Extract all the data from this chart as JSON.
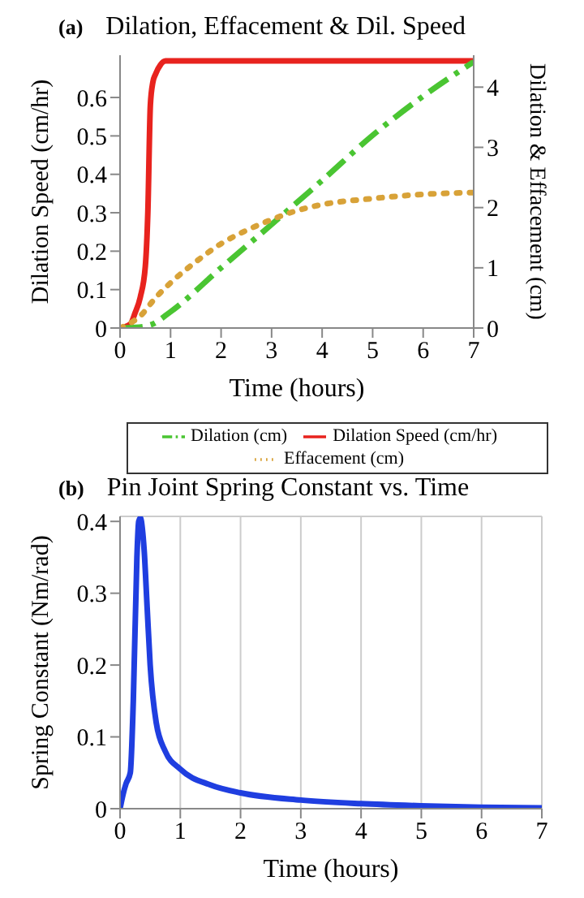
{
  "chart_data": [
    {
      "type": "line",
      "title": "Dilation, Effacement & Dil. Speed",
      "xlabel": "Time (hours)",
      "ylabel": "Dilation Speed (cm/hr)",
      "y2label": "Dilation & Effacement (cm)",
      "annotations": [
        "(a)"
      ],
      "xlim": [
        0,
        7
      ],
      "xticks": [
        0,
        1,
        2,
        3,
        4,
        5,
        6,
        7
      ],
      "ylim": [
        0,
        0.71
      ],
      "yticks": [
        0,
        0.1,
        0.2,
        0.3,
        0.4,
        0.5,
        0.6
      ],
      "y2lim": [
        0,
        4.53
      ],
      "y2ticks": [
        0,
        1,
        2,
        3,
        4
      ],
      "grid": false,
      "legend": "bottom",
      "series": [
        {
          "name": "Dilation Speed (cm/hr)",
          "color": "#e8231e",
          "line_style": "solid",
          "x": [
            0,
            0.2,
            0.3,
            0.4,
            0.5,
            0.55,
            0.6,
            0.65,
            0.7,
            0.8,
            0.9,
            1,
            2,
            3,
            4,
            5,
            6,
            7
          ],
          "values": [
            0,
            0.01,
            0.04,
            0.08,
            0.16,
            0.3,
            0.58,
            0.64,
            0.66,
            0.685,
            0.695,
            0.695,
            0.695,
            0.695,
            0.695,
            0.695,
            0.695,
            0.695
          ]
        },
        {
          "name": "Dilation (cm)",
          "color": "#4ac532",
          "line_style": "dashdot",
          "axis": "y2",
          "x": [
            0,
            0.3,
            0.6,
            1,
            2,
            3,
            4,
            5,
            6,
            7
          ],
          "values": [
            0,
            0.01,
            0.05,
            0.27,
            1.0,
            1.72,
            2.45,
            3.2,
            3.85,
            4.42
          ]
        },
        {
          "name": "Effacement (cm)",
          "color": "#d8a238",
          "line_style": "dotted",
          "axis": "y2",
          "x": [
            0,
            0.2,
            0.4,
            0.7,
            1,
            1.5,
            2,
            2.5,
            3,
            3.5,
            4,
            5,
            6,
            7
          ],
          "values": [
            0,
            0.08,
            0.2,
            0.5,
            0.75,
            1.1,
            1.4,
            1.62,
            1.8,
            1.95,
            2.05,
            2.15,
            2.22,
            2.25
          ]
        }
      ]
    },
    {
      "type": "line",
      "title": "Pin Joint Spring Constant vs. Time",
      "xlabel": "Time (hours)",
      "ylabel": "Spring Constant (Nm/rad)",
      "annotations": [
        "(b)"
      ],
      "xlim": [
        0,
        7
      ],
      "xticks": [
        0,
        1,
        2,
        3,
        4,
        5,
        6,
        7
      ],
      "ylim": [
        0,
        0.407
      ],
      "yticks": [
        0,
        0.1,
        0.2,
        0.3,
        0.4
      ],
      "grid": true,
      "legend": false,
      "series": [
        {
          "color": "#1f3ee0",
          "line_style": "solid",
          "x": [
            0,
            0.05,
            0.1,
            0.17,
            0.22,
            0.28,
            0.31,
            0.34,
            0.37,
            0.4,
            0.45,
            0.5,
            0.6,
            0.75,
            1,
            1.5,
            2,
            3,
            4,
            5,
            6,
            7
          ],
          "values": [
            0,
            0.02,
            0.035,
            0.05,
            0.15,
            0.35,
            0.4,
            0.405,
            0.39,
            0.36,
            0.28,
            0.2,
            0.12,
            0.08,
            0.055,
            0.033,
            0.022,
            0.012,
            0.007,
            0.004,
            0.002,
            0.001
          ]
        }
      ]
    }
  ]
}
